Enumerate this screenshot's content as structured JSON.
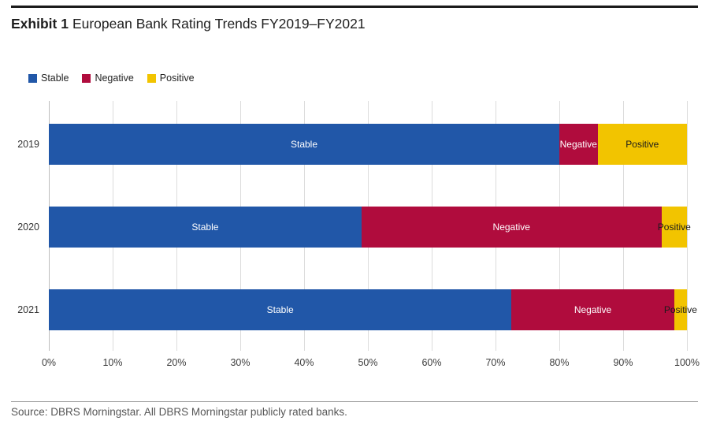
{
  "header": {
    "exhibit_label": "Exhibit 1",
    "title": "European Bank Rating Trends FY2019–FY2021"
  },
  "source": "Source: DBRS Morningstar. All DBRS Morningstar publicly rated banks.",
  "colors": {
    "stable_blue": "#2157A8",
    "negative_crimson": "#B00C3D",
    "positive_gold": "#F2C400",
    "gridline": "#DCDCDC",
    "axis_line": "#BDBDBD",
    "top_rule": "#1A1A1A",
    "footer_rule": "#9C9C9C"
  },
  "chart_data": {
    "type": "bar",
    "orientation": "horizontal",
    "stacked": true,
    "title": "European Bank Rating Trends FY2019–FY2021",
    "categories": [
      "2019",
      "2020",
      "2021"
    ],
    "series": [
      {
        "name": "Stable",
        "color": "#2157A8",
        "label_color": "#FFFFFF",
        "values": [
          80,
          49,
          72.5
        ]
      },
      {
        "name": "Negative",
        "color": "#B00C3D",
        "label_color": "#FFFFFF",
        "values": [
          6,
          47,
          25.5
        ]
      },
      {
        "name": "Positive",
        "color": "#F2C400",
        "label_color": "#1B1B1B",
        "values": [
          14,
          4,
          2
        ]
      }
    ],
    "x_ticks": [
      "0%",
      "10%",
      "20%",
      "30%",
      "40%",
      "50%",
      "60%",
      "70%",
      "80%",
      "90%",
      "100%"
    ],
    "xlim": [
      0,
      100
    ],
    "xlabel": "",
    "ylabel": "",
    "grid": true,
    "legend_position": "top-left",
    "bar_labels": true
  }
}
